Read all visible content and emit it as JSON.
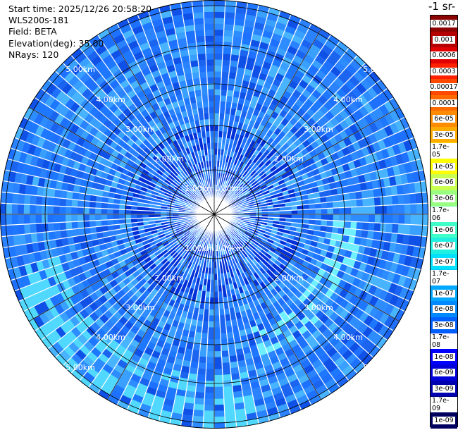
{
  "info": {
    "start": "Start time: 2025/12/26 20:58:20",
    "site": "WLS200s-181",
    "field": "Field: BETA",
    "elev": "Elevation(deg): 35.00",
    "nrays": "NRays: 120"
  },
  "unit_label": "-1 sr-",
  "colorbar": {
    "labels": [
      "0.0017",
      "0.001",
      "0.0006",
      "0.0003",
      "0.00017",
      "0.0001",
      "6e-05",
      "3e-05",
      "1.7e-05",
      "1e-05",
      "6e-06",
      "3e-06",
      "1.7e-06",
      "1e-06",
      "6e-07",
      "3e-07",
      "1.7e-07",
      "1e-07",
      "6e-08",
      "3e-08",
      "1.7e-08",
      "1e-08",
      "6e-09",
      "3e-09",
      "1.7e-09",
      "1e-09"
    ],
    "colors": [
      "#8b0000",
      "#b40000",
      "#e00000",
      "#ff2000",
      "#ff4800",
      "#ff6a00",
      "#ff8c00",
      "#ffad00",
      "#ffd400",
      "#ffff00",
      "#c8ff50",
      "#98ff80",
      "#70ffa0",
      "#40ffc8",
      "#20f0e0",
      "#00e0ff",
      "#00c8ff",
      "#00a8ff",
      "#0088ff",
      "#0060ff",
      "#0040ff",
      "#0000ff",
      "#0000d8",
      "#0000b0",
      "#000088",
      "#000060"
    ]
  },
  "ring_labels": [
    "1.00km",
    "2.00km",
    "3.00km",
    "4.00km",
    "5.00km"
  ]
}
